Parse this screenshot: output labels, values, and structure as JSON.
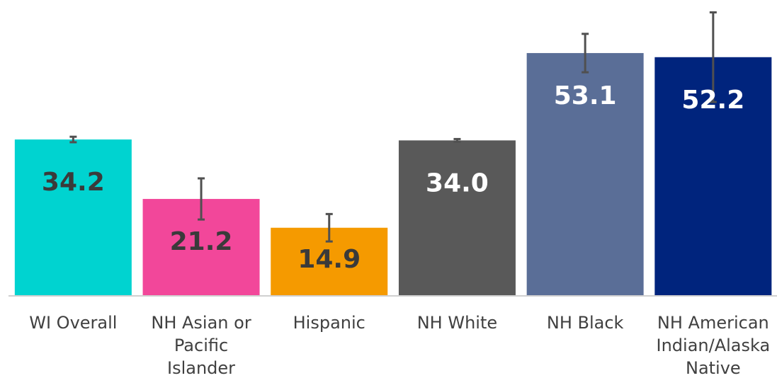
{
  "chart_data": {
    "type": "bar",
    "categories": [
      "WI Overall",
      "NH Asian or Pacific Islander",
      "Hispanic",
      "NH White",
      "NH Black",
      "NH American Indian/Alaska Native"
    ],
    "values": [
      34.2,
      21.2,
      14.9,
      34.0,
      53.1,
      52.2
    ],
    "value_labels": [
      "34.2",
      "21.2",
      "14.9",
      "34.0",
      "53.1",
      "52.2"
    ],
    "errors": [
      0.6,
      4.5,
      3.0,
      0.3,
      4.2,
      9.8
    ],
    "colors": [
      "#00d3d0",
      "#f2479a",
      "#f59a00",
      "#595959",
      "#5a6e97",
      "#00247d"
    ],
    "label_colors": [
      "#3a3a3a",
      "#3a3a3a",
      "#3a3a3a",
      "#ffffff",
      "#ffffff",
      "#ffffff"
    ],
    "error_color": "#505050",
    "ylim": [
      0,
      63
    ]
  }
}
